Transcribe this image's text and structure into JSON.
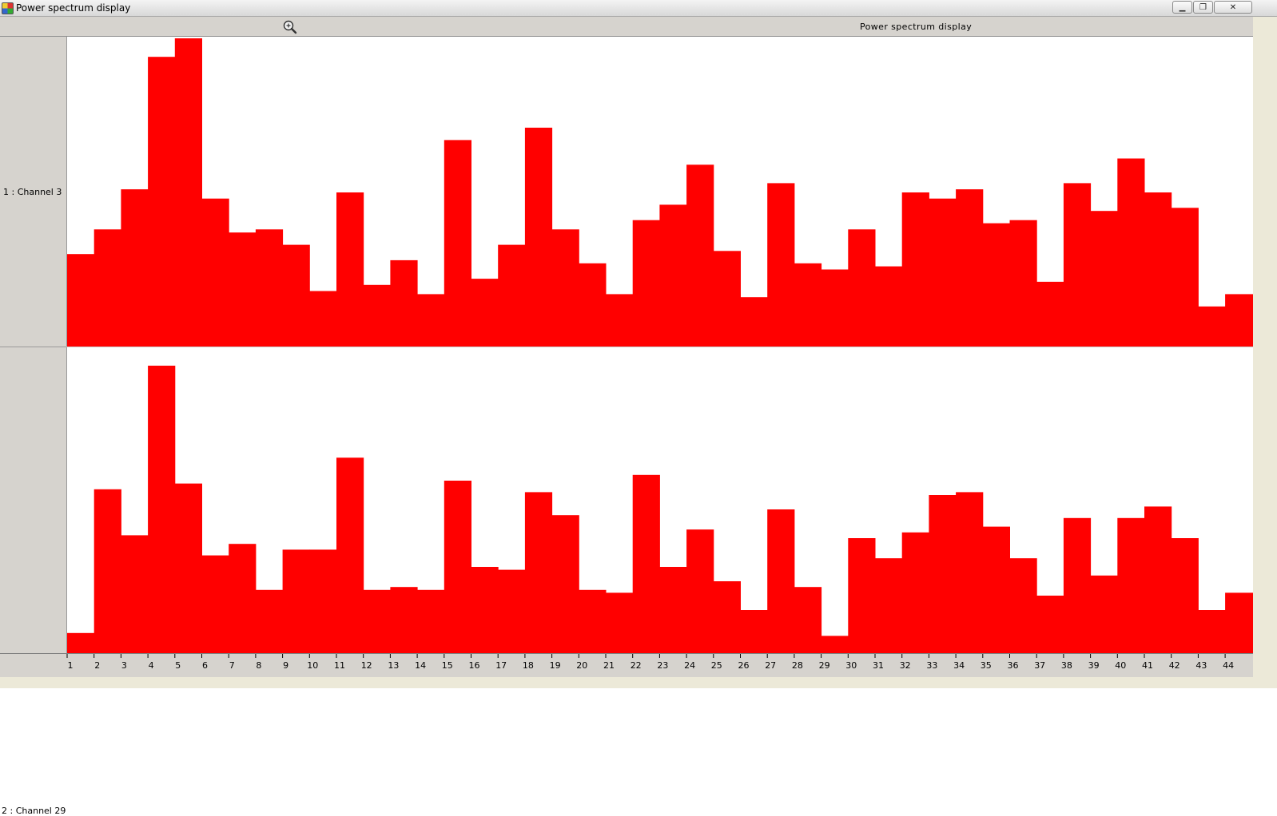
{
  "window": {
    "title": "Power spectrum display",
    "buttons": {
      "minimize": "▁",
      "maximize": "❐",
      "close": "✕"
    }
  },
  "toolbar": {
    "zoom_icon": "zoom-magnifier-icon",
    "panel_title": "Power spectrum display"
  },
  "colors": {
    "bars": "#ff0000",
    "panel_bg": "#d6d3ce",
    "plot_bg": "#ffffff"
  },
  "chart_data": {
    "type": "bar",
    "categories": [
      "1",
      "2",
      "3",
      "4",
      "5",
      "6",
      "7",
      "8",
      "9",
      "10",
      "11",
      "12",
      "13",
      "14",
      "15",
      "16",
      "17",
      "18",
      "19",
      "20",
      "21",
      "22",
      "23",
      "24",
      "25",
      "26",
      "27",
      "28",
      "29",
      "30",
      "31",
      "32",
      "33",
      "34",
      "35",
      "36",
      "37",
      "38",
      "39",
      "40",
      "41",
      "42",
      "43",
      "44"
    ],
    "series": [
      {
        "name": "1 : Channel 3",
        "values": [
          0.3,
          0.38,
          0.51,
          0.94,
          1.0,
          0.48,
          0.37,
          0.38,
          0.33,
          0.18,
          0.5,
          0.2,
          0.28,
          0.17,
          0.67,
          0.22,
          0.33,
          0.71,
          0.38,
          0.27,
          0.17,
          0.41,
          0.46,
          0.59,
          0.31,
          0.16,
          0.53,
          0.27,
          0.25,
          0.38,
          0.26,
          0.5,
          0.48,
          0.51,
          0.4,
          0.41,
          0.21,
          0.53,
          0.44,
          0.61,
          0.5,
          0.45,
          0.13,
          0.17
        ]
      },
      {
        "name": "2 : Channel 29",
        "values": [
          0.07,
          0.57,
          0.41,
          1.0,
          0.59,
          0.34,
          0.38,
          0.22,
          0.36,
          0.36,
          0.68,
          0.22,
          0.23,
          0.22,
          0.6,
          0.3,
          0.29,
          0.56,
          0.48,
          0.22,
          0.21,
          0.62,
          0.3,
          0.43,
          0.25,
          0.15,
          0.5,
          0.23,
          0.06,
          0.4,
          0.33,
          0.42,
          0.55,
          0.56,
          0.44,
          0.33,
          0.2,
          0.47,
          0.27,
          0.47,
          0.51,
          0.4,
          0.15,
          0.21
        ]
      }
    ],
    "grid": false,
    "legend": "none"
  }
}
